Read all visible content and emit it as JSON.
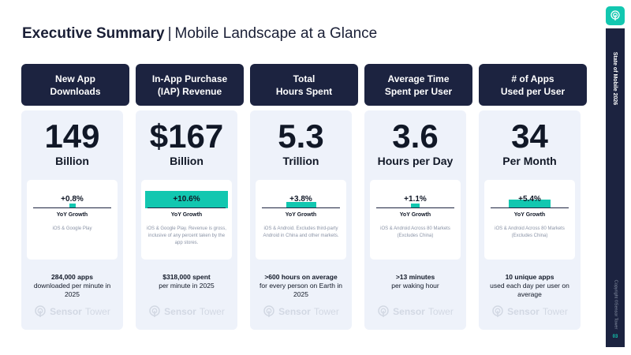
{
  "title": {
    "main": "Executive Summary",
    "separator": "|",
    "sub": "Mobile Landscape at a Glance"
  },
  "sidebar": {
    "title": "State of Mobile 2026",
    "copyright": "Copyright ©Sensor Tower",
    "page": "03",
    "logo_icon": "sensor-tower-logo-icon"
  },
  "watermark": {
    "brand_bold": "Sensor",
    "brand_light": "Tower"
  },
  "colors": {
    "navy": "#1c2340",
    "teal": "#12c7b0",
    "card_bg": "#eef2fa"
  },
  "cards": [
    {
      "header": "New App\nDownloads",
      "value": "149",
      "unit": "Billion",
      "yoy": "+0.8%",
      "yoy_pct": 0.8,
      "yoy_label": "YoY Growth",
      "note": "iOS & Google Play",
      "fact_bold": "284,000 apps",
      "fact": "downloaded per minute in 2025"
    },
    {
      "header": "In-App Purchase\n(IAP) Revenue",
      "value": "$167",
      "unit": "Billion",
      "yoy": "+10.6%",
      "yoy_pct": 10.6,
      "yoy_label": "YoY Growth",
      "note": "iOS & Google Play. Revenue is gross, inclusive of any percent taken by the app stores.",
      "fact_bold": "$318,000 spent",
      "fact": "per minute in 2025"
    },
    {
      "header": "Total\nHours Spent",
      "value": "5.3",
      "unit": "Trillion",
      "yoy": "+3.8%",
      "yoy_pct": 3.8,
      "yoy_label": "YoY Growth",
      "note": "iOS & Android. Excludes third-party Android in China and other markets.",
      "fact_bold": ">600 hours on average",
      "fact": "for every person on Earth in 2025"
    },
    {
      "header": "Average Time\nSpent per User",
      "value": "3.6",
      "unit": "Hours per Day",
      "yoy": "+1.1%",
      "yoy_pct": 1.1,
      "yoy_label": "YoY Growth",
      "note": "iOS & Android Across 80 Markets (Excludes China)",
      "fact_bold": ">13 minutes",
      "fact": "per waking hour"
    },
    {
      "header": "# of Apps\nUsed per User",
      "value": "34",
      "unit": "Per Month",
      "yoy": "+5.4%",
      "yoy_pct": 5.4,
      "yoy_label": "YoY Growth",
      "note": "iOS & Android Across 80 Markets (Excludes China)",
      "fact_bold": "10 unique apps",
      "fact": "used each day per user on average"
    }
  ]
}
